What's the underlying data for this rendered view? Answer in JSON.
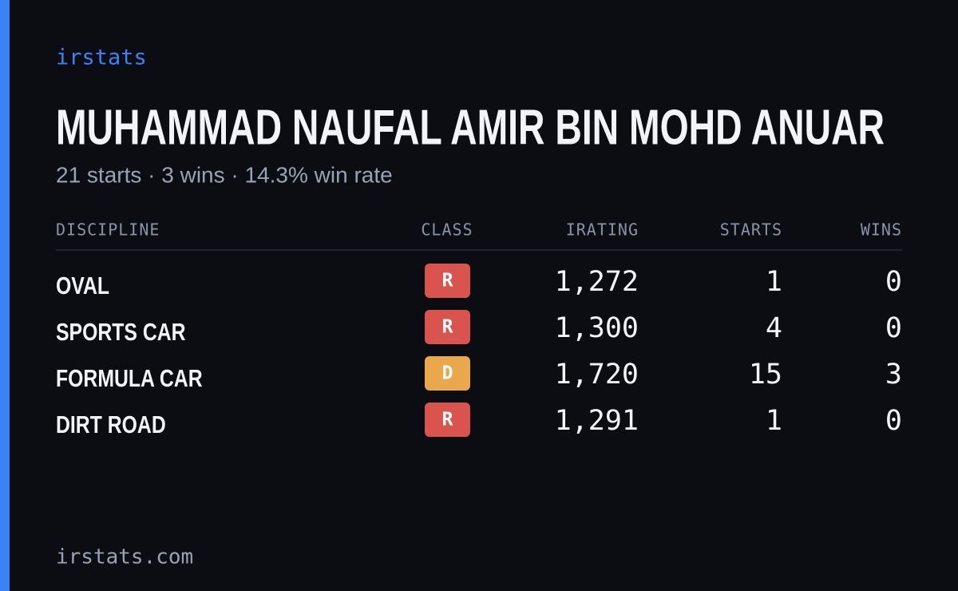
{
  "brand": "irstats",
  "title": "MUHAMMAD NAUFAL AMIR BIN MOHD ANUAR",
  "subtitle": "21 starts · 3 wins · 14.3% win rate",
  "table": {
    "headers": [
      "DISCIPLINE",
      "CLASS",
      "IRATING",
      "STARTS",
      "WINS"
    ],
    "rows": [
      {
        "discipline": "OVAL",
        "class": "R",
        "class_color": "#d9534f",
        "irating": "1,272",
        "starts": 1,
        "wins": 0
      },
      {
        "discipline": "SPORTS CAR",
        "class": "R",
        "class_color": "#d9534f",
        "irating": "1,300",
        "starts": 4,
        "wins": 0
      },
      {
        "discipline": "FORMULA CAR",
        "class": "D",
        "class_color": "#e9a84c",
        "irating": "1,720",
        "starts": 15,
        "wins": 3
      },
      {
        "discipline": "DIRT ROAD",
        "class": "R",
        "class_color": "#d9534f",
        "irating": "1,291",
        "starts": 1,
        "wins": 0
      }
    ]
  },
  "footer": "irstats.com"
}
